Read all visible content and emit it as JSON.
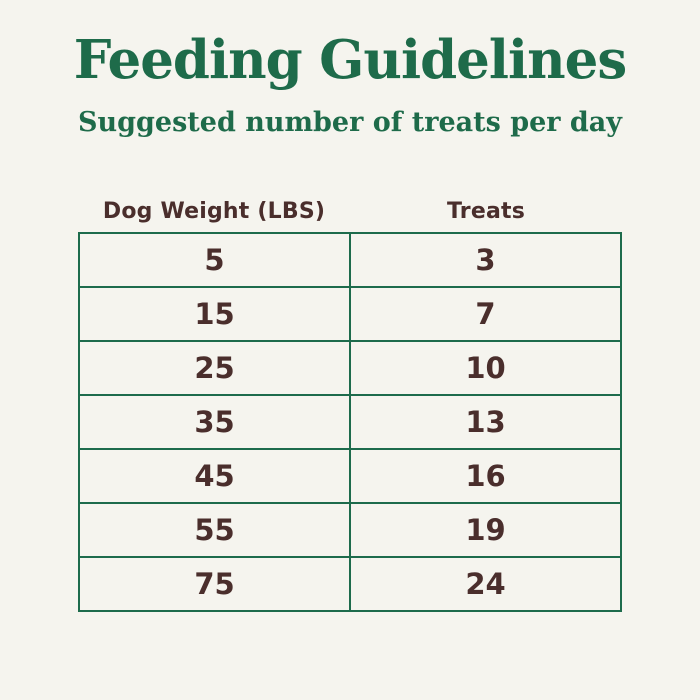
{
  "page": {
    "background_color": "#f5f4ee",
    "accent_green": "#1e6b4a",
    "text_brown": "#4a2e2c"
  },
  "chart_data": {
    "type": "table",
    "title": "Feeding Guidelines",
    "subtitle": "Suggested number of treats per day",
    "columns": [
      "Dog Weight (LBS)",
      "Treats"
    ],
    "rows": [
      [
        5,
        3
      ],
      [
        15,
        7
      ],
      [
        25,
        10
      ],
      [
        35,
        13
      ],
      [
        45,
        16
      ],
      [
        55,
        19
      ],
      [
        75,
        24
      ]
    ]
  }
}
